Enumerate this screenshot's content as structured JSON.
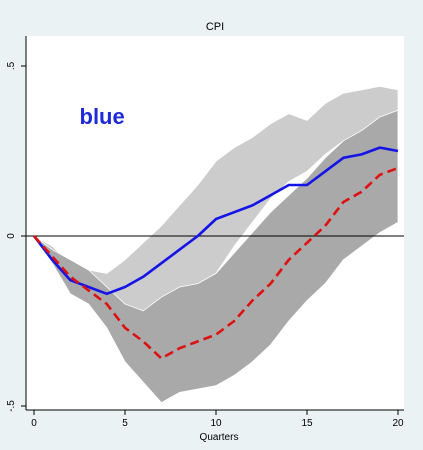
{
  "chart_data": {
    "type": "line",
    "title": "CPI",
    "xlabel": "Quarters",
    "ylabel": "",
    "xlim": [
      0,
      20
    ],
    "ylim": [
      -0.5,
      0.5
    ],
    "x_ticks": [
      0,
      5,
      10,
      15,
      20
    ],
    "y_ticks": [
      -0.5,
      0,
      0.5
    ],
    "y_tick_labels": [
      "-.5",
      "0",
      ".5"
    ],
    "zero_line": 0,
    "annotation": {
      "text": "blue",
      "color": "#1f2bd9",
      "x": 2.5,
      "y": 0.33
    },
    "bands": [
      {
        "color": "#cccccc",
        "x": [
          0,
          1,
          2,
          3,
          4,
          5,
          6,
          7,
          8,
          9,
          10,
          11,
          12,
          13,
          14,
          15,
          16,
          17,
          18,
          19,
          20
        ],
        "upper": [
          0,
          -0.03,
          -0.08,
          -0.1,
          -0.11,
          -0.07,
          -0.02,
          0.03,
          0.09,
          0.15,
          0.22,
          0.26,
          0.29,
          0.33,
          0.36,
          0.34,
          0.39,
          0.42,
          0.43,
          0.44,
          0.43
        ],
        "lower": [
          0,
          -0.06,
          -0.16,
          -0.19,
          -0.2,
          -0.22,
          -0.22,
          -0.21,
          -0.19,
          -0.16,
          -0.11,
          -0.03,
          0.04,
          0.11,
          0.16,
          0.19,
          0.24,
          0.28,
          0.3,
          0.34,
          0.36
        ]
      },
      {
        "color": "#a9a9a9",
        "x": [
          0,
          1,
          2,
          3,
          4,
          5,
          6,
          7,
          8,
          9,
          10,
          11,
          12,
          13,
          14,
          15,
          16,
          17,
          18,
          19,
          20
        ],
        "upper": [
          0,
          -0.04,
          -0.07,
          -0.1,
          -0.15,
          -0.2,
          -0.22,
          -0.18,
          -0.15,
          -0.14,
          -0.11,
          -0.05,
          0.01,
          0.07,
          0.12,
          0.17,
          0.23,
          0.28,
          0.31,
          0.35,
          0.37
        ],
        "lower": [
          0,
          -0.08,
          -0.17,
          -0.2,
          -0.27,
          -0.37,
          -0.43,
          -0.49,
          -0.46,
          -0.45,
          -0.44,
          -0.41,
          -0.37,
          -0.32,
          -0.25,
          -0.19,
          -0.14,
          -0.07,
          -0.03,
          0.01,
          0.04
        ]
      }
    ],
    "series": [
      {
        "color": "#1414e6",
        "style": "solid",
        "x": [
          0,
          1,
          2,
          3,
          4,
          5,
          6,
          7,
          8,
          9,
          10,
          11,
          12,
          13,
          14,
          15,
          16,
          17,
          18,
          19,
          20
        ],
        "values": [
          0,
          -0.07,
          -0.13,
          -0.15,
          -0.17,
          -0.15,
          -0.12,
          -0.08,
          -0.04,
          0,
          0.05,
          0.07,
          0.09,
          0.12,
          0.15,
          0.15,
          0.19,
          0.23,
          0.24,
          0.26,
          0.25
        ]
      },
      {
        "color": "#dd1111",
        "style": "dashed",
        "x": [
          0,
          1,
          2,
          3,
          4,
          5,
          6,
          7,
          8,
          9,
          10,
          11,
          12,
          13,
          14,
          15,
          16,
          17,
          18,
          19,
          20
        ],
        "values": [
          0,
          -0.06,
          -0.12,
          -0.16,
          -0.2,
          -0.27,
          -0.31,
          -0.36,
          -0.33,
          -0.31,
          -0.29,
          -0.25,
          -0.19,
          -0.14,
          -0.07,
          -0.02,
          0.03,
          0.1,
          0.13,
          0.18,
          0.2
        ]
      }
    ]
  }
}
